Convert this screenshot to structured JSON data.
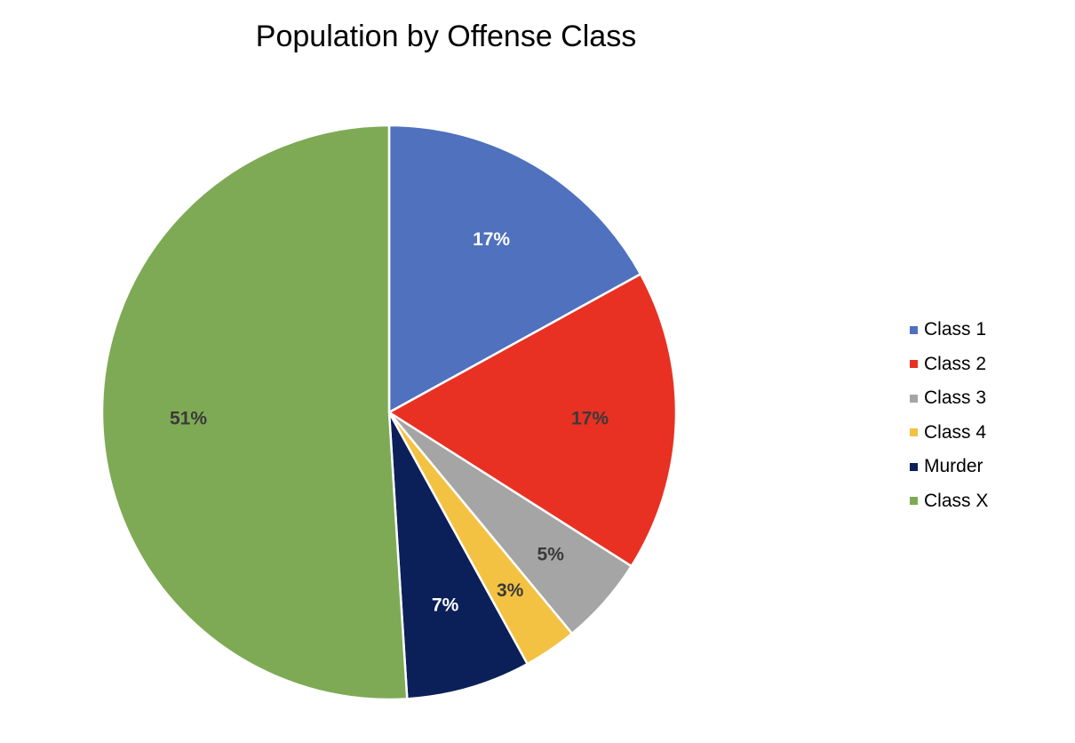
{
  "chart_data": {
    "type": "pie",
    "title": "Population by Offense Class",
    "categories": [
      "Class 1",
      "Class 2",
      "Class 3",
      "Class 4",
      "Murder",
      "Class X"
    ],
    "values": [
      17,
      17,
      5,
      3,
      7,
      51
    ],
    "data_labels": [
      "17%",
      "17%",
      "5%",
      "3%",
      "7%",
      "51%"
    ],
    "colors": [
      "#4F71BE",
      "#E83123",
      "#A5A5A5",
      "#F4C242",
      "#0B1F59",
      "#7EAA55"
    ],
    "label_colors": [
      "#FFFFFF",
      "#3A3A3A",
      "#3A3A3A",
      "#3A3A3A",
      "#FFFFFF",
      "#3A3A3A"
    ],
    "legend_position": "right",
    "start_angle": "12 o'clock",
    "direction": "clockwise"
  }
}
